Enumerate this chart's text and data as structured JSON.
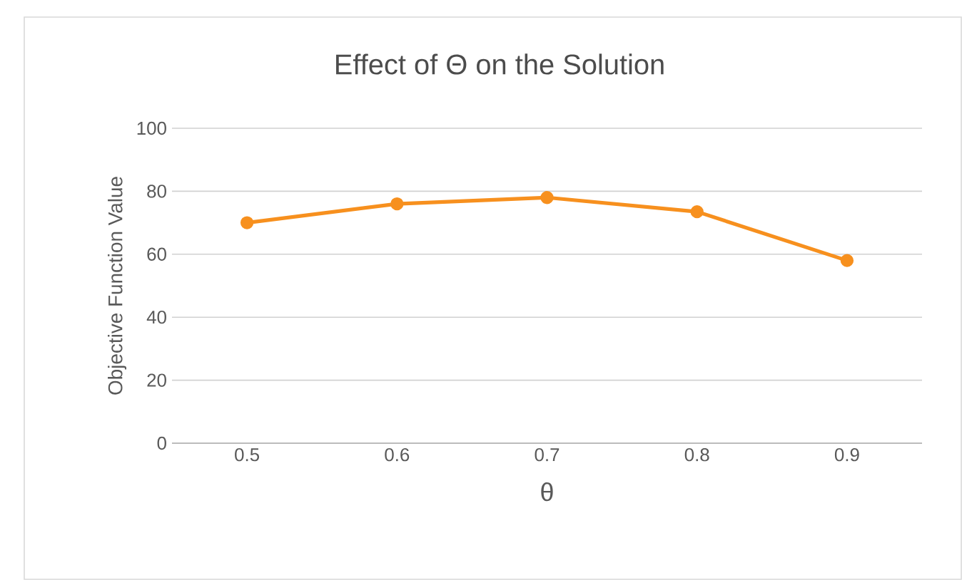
{
  "chart_data": {
    "type": "line",
    "title": "Effect of Θ on the Solution",
    "xlabel": "θ",
    "ylabel": "Objective Function Value",
    "categories": [
      "0.5",
      "0.6",
      "0.7",
      "0.8",
      "0.9"
    ],
    "series": [
      {
        "color": "#f7901e",
        "values": [
          70,
          76,
          78,
          73.5,
          58
        ]
      }
    ],
    "ylim": [
      0,
      100
    ],
    "yticks": [
      0,
      20,
      40,
      60,
      80,
      100
    ],
    "grid": "y",
    "marker": "circle",
    "line_style": "solid"
  }
}
